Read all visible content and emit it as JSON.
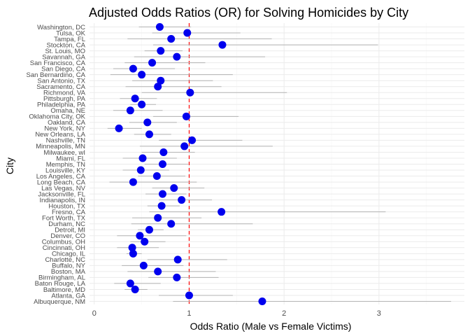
{
  "colors": {
    "point": "#0000ee",
    "ci": "#b3b3b3",
    "reference": "#ff0000",
    "grid": "#ebebeb"
  },
  "chart_data": {
    "type": "scatter",
    "title": "Adjusted Odds Ratios (OR) for Solving Homicides by City",
    "xlabel": "Odds Ratio (Male vs Female Victims)",
    "ylabel": "City",
    "xlim": [
      -0.05,
      3.9
    ],
    "x_ticks": [
      0,
      1,
      2,
      3
    ],
    "reference_line": 1,
    "grid": true,
    "legend": "none",
    "points": [
      {
        "city": "Albuquerque, NM",
        "or": 1.77,
        "low": 0.83,
        "high": 3.76
      },
      {
        "city": "Atlanta, GA",
        "or": 1.0,
        "low": 0.68,
        "high": 1.46
      },
      {
        "city": "Baltimore, MD",
        "or": 0.43,
        "low": 0.32,
        "high": 0.56
      },
      {
        "city": "Baton Rouge, LA",
        "or": 0.38,
        "low": 0.21,
        "high": 0.7
      },
      {
        "city": "Birmingham, AL",
        "or": 0.87,
        "low": 0.57,
        "high": 1.31
      },
      {
        "city": "Boston, MA",
        "or": 0.67,
        "low": 0.35,
        "high": 1.28
      },
      {
        "city": "Buffalo, NY",
        "or": 0.52,
        "low": 0.29,
        "high": 0.94
      },
      {
        "city": "Charlotte, NC",
        "or": 0.88,
        "low": 0.56,
        "high": 1.4
      },
      {
        "city": "Chicago, IL",
        "or": 0.41,
        "low": 0.34,
        "high": 0.5
      },
      {
        "city": "Cincinnati, OH",
        "or": 0.4,
        "low": 0.24,
        "high": 0.68
      },
      {
        "city": "Columbus, OH",
        "or": 0.53,
        "low": 0.38,
        "high": 0.75
      },
      {
        "city": "Denver, CO",
        "or": 0.48,
        "low": 0.24,
        "high": 0.97
      },
      {
        "city": "Detroit, MI",
        "or": 0.58,
        "low": 0.46,
        "high": 0.73
      },
      {
        "city": "Durham, NC",
        "or": 0.81,
        "low": 0.39,
        "high": 1.67
      },
      {
        "city": "Fort Worth, TX",
        "or": 0.67,
        "low": 0.4,
        "high": 1.13
      },
      {
        "city": "Fresno, CA",
        "or": 1.34,
        "low": 0.58,
        "high": 3.07
      },
      {
        "city": "Houston, TX",
        "or": 0.71,
        "low": 0.56,
        "high": 0.9
      },
      {
        "city": "Indianapolis, IN",
        "or": 0.92,
        "low": 0.68,
        "high": 1.24
      },
      {
        "city": "Jacksonville, FL",
        "or": 0.72,
        "low": 0.54,
        "high": 0.97
      },
      {
        "city": "Las Vegas, NV",
        "or": 0.84,
        "low": 0.61,
        "high": 1.16
      },
      {
        "city": "Long Beach, CA",
        "or": 0.41,
        "low": 0.16,
        "high": 1.08
      },
      {
        "city": "Los Angeles, CA",
        "or": 0.66,
        "low": 0.46,
        "high": 0.96
      },
      {
        "city": "Louisville, KY",
        "or": 0.49,
        "low": 0.3,
        "high": 0.79
      },
      {
        "city": "Memphis, TN",
        "or": 0.72,
        "low": 0.53,
        "high": 0.99
      },
      {
        "city": "Miami, FL",
        "or": 0.51,
        "low": 0.3,
        "high": 0.87
      },
      {
        "city": "Milwaukee, wI",
        "or": 0.73,
        "low": 0.5,
        "high": 1.06
      },
      {
        "city": "Minneapolis, MN",
        "or": 0.95,
        "low": 0.48,
        "high": 1.88
      },
      {
        "city": "Nashville, TN",
        "or": 1.03,
        "low": 0.68,
        "high": 1.56
      },
      {
        "city": "New Orleans, LA",
        "or": 0.58,
        "low": 0.42,
        "high": 0.81
      },
      {
        "city": "New York, NY",
        "or": 0.26,
        "low": 0.14,
        "high": 0.5
      },
      {
        "city": "Oakland, CA",
        "or": 0.56,
        "low": 0.37,
        "high": 0.87
      },
      {
        "city": "Oklahoma City, OK",
        "or": 0.97,
        "low": 0.62,
        "high": 1.52
      },
      {
        "city": "Omaha, NE",
        "or": 0.38,
        "low": 0.2,
        "high": 0.72
      },
      {
        "city": "Philadelphia, PA",
        "or": 0.5,
        "low": 0.38,
        "high": 0.65
      },
      {
        "city": "Pittsburgh, PA",
        "or": 0.43,
        "low": 0.27,
        "high": 0.66
      },
      {
        "city": "Richmond, VA",
        "or": 1.01,
        "low": 0.5,
        "high": 2.03
      },
      {
        "city": "Sacramento, CA",
        "or": 0.67,
        "low": 0.33,
        "high": 1.34
      },
      {
        "city": "San Antonio, TX",
        "or": 0.7,
        "low": 0.4,
        "high": 1.25
      },
      {
        "city": "San Bernardino, CA",
        "or": 0.5,
        "low": 0.17,
        "high": 1.46
      },
      {
        "city": "San Diego, CA",
        "or": 0.41,
        "low": 0.2,
        "high": 0.85
      },
      {
        "city": "San Francisco, CA",
        "or": 0.61,
        "low": 0.32,
        "high": 1.17
      },
      {
        "city": "Savannah, GA",
        "or": 0.87,
        "low": 0.42,
        "high": 1.8
      },
      {
        "city": "St. Louis, MO",
        "or": 0.7,
        "low": 0.53,
        "high": 0.93
      },
      {
        "city": "Stockton, CA",
        "or": 1.35,
        "low": 0.62,
        "high": 2.99
      },
      {
        "city": "Tampa, FL",
        "or": 0.81,
        "low": 0.35,
        "high": 1.87
      },
      {
        "city": "Tulsa, OK",
        "or": 0.98,
        "low": 0.61,
        "high": 1.54
      },
      {
        "city": "Washington, DC",
        "or": 0.69,
        "low": 0.47,
        "high": 1.02
      }
    ]
  }
}
